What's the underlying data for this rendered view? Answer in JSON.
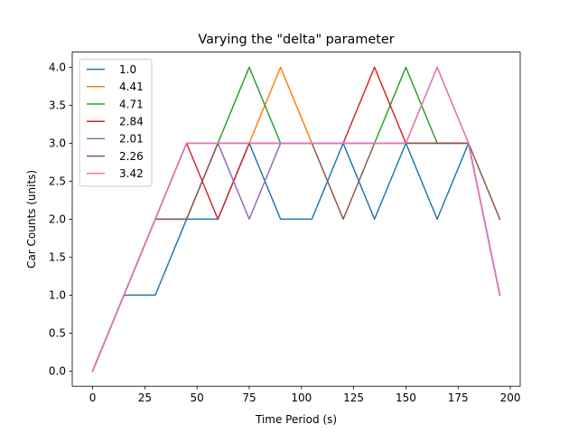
{
  "chart_data": {
    "type": "line",
    "title": "Varying the \"delta\" parameter",
    "xlabel": "Time Period (s)",
    "ylabel": "Car Counts (units)",
    "xlim": [
      -9.75,
      204.75
    ],
    "ylim": [
      -0.2,
      4.2
    ],
    "xticks": [
      0,
      25,
      50,
      75,
      100,
      125,
      150,
      175,
      200
    ],
    "yticks": [
      0.0,
      0.5,
      1.0,
      1.5,
      2.0,
      2.5,
      3.0,
      3.5,
      4.0
    ],
    "xtick_labels": [
      "0",
      "25",
      "50",
      "75",
      "100",
      "125",
      "150",
      "175",
      "200"
    ],
    "ytick_labels": [
      "0.0",
      "0.5",
      "1.0",
      "1.5",
      "2.0",
      "2.5",
      "3.0",
      "3.5",
      "4.0"
    ],
    "grid": false,
    "legend_position": "top-left",
    "x": [
      0,
      15,
      30,
      45,
      60,
      75,
      90,
      105,
      120,
      135,
      150,
      165,
      180,
      195
    ],
    "series": [
      {
        "name": "1.0",
        "color": "#1f77b4",
        "values": [
          0,
          1,
          1,
          2,
          2,
          3,
          2,
          2,
          3,
          2,
          3,
          2,
          3,
          1
        ]
      },
      {
        "name": "4.41",
        "color": "#ff7f0e",
        "values": [
          0,
          1,
          2,
          3,
          3,
          3,
          4,
          3,
          3,
          3,
          3,
          4,
          3,
          1
        ]
      },
      {
        "name": "4.71",
        "color": "#2ca02c",
        "values": [
          0,
          1,
          2,
          3,
          3,
          4,
          3,
          3,
          3,
          3,
          4,
          3,
          3,
          1
        ]
      },
      {
        "name": "2.84",
        "color": "#d62728",
        "values": [
          0,
          1,
          2,
          3,
          2,
          3,
          3,
          3,
          3,
          4,
          3,
          3,
          3,
          1
        ]
      },
      {
        "name": "2.01",
        "color": "#9467bd",
        "values": [
          0,
          1,
          2,
          2,
          3,
          2,
          3,
          3,
          3,
          3,
          3,
          3,
          3,
          1
        ]
      },
      {
        "name": "2.26",
        "color": "#8c564b",
        "values": [
          0,
          1,
          2,
          2,
          3,
          3,
          3,
          3,
          2,
          3,
          3,
          3,
          3,
          2
        ]
      },
      {
        "name": "3.42",
        "color": "#e377c2",
        "values": [
          0,
          1,
          2,
          3,
          3,
          3,
          3,
          3,
          3,
          3,
          3,
          4,
          3,
          1
        ]
      }
    ]
  }
}
